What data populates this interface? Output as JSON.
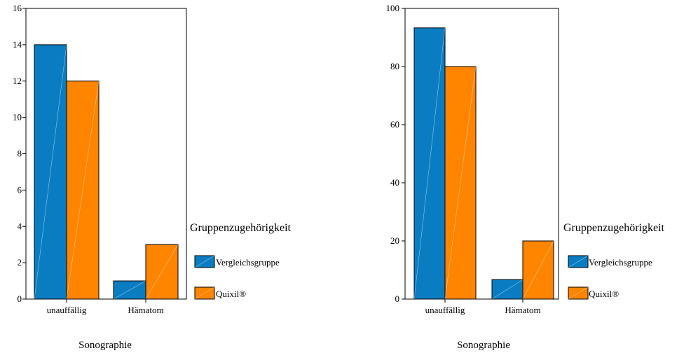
{
  "chart_data": [
    {
      "type": "bar",
      "categories": [
        "unauffällig",
        "Hämatom"
      ],
      "series": [
        {
          "name": "Vergleichsgruppe",
          "values": [
            14,
            1
          ]
        },
        {
          "name": "Quixil®",
          "values": [
            12,
            3
          ]
        }
      ],
      "xlabel": "Sonographie",
      "ylabel": "",
      "ylim": [
        0,
        16
      ],
      "yticks": [
        0,
        2,
        4,
        6,
        8,
        10,
        12,
        14,
        16
      ],
      "legend_title": "Gruppenzugehörigkeit",
      "legend_position": "right",
      "grid": false
    },
    {
      "type": "bar",
      "categories": [
        "unauffällig",
        "Hämatom"
      ],
      "series": [
        {
          "name": "Vergleichsgruppe",
          "values": [
            93.3,
            6.7
          ]
        },
        {
          "name": "Quixil®",
          "values": [
            80,
            20
          ]
        }
      ],
      "xlabel": "Sonographie",
      "ylabel": "",
      "ylim": [
        0,
        100
      ],
      "yticks": [
        0,
        20,
        40,
        60,
        80,
        100
      ],
      "legend_title": "Gruppenzugehörigkeit",
      "legend_position": "right",
      "grid": false
    }
  ],
  "colors": {
    "Vergleichsgruppe": "#0a7dc2",
    "Quixil®": "#ff8400",
    "axis": "#000000"
  }
}
